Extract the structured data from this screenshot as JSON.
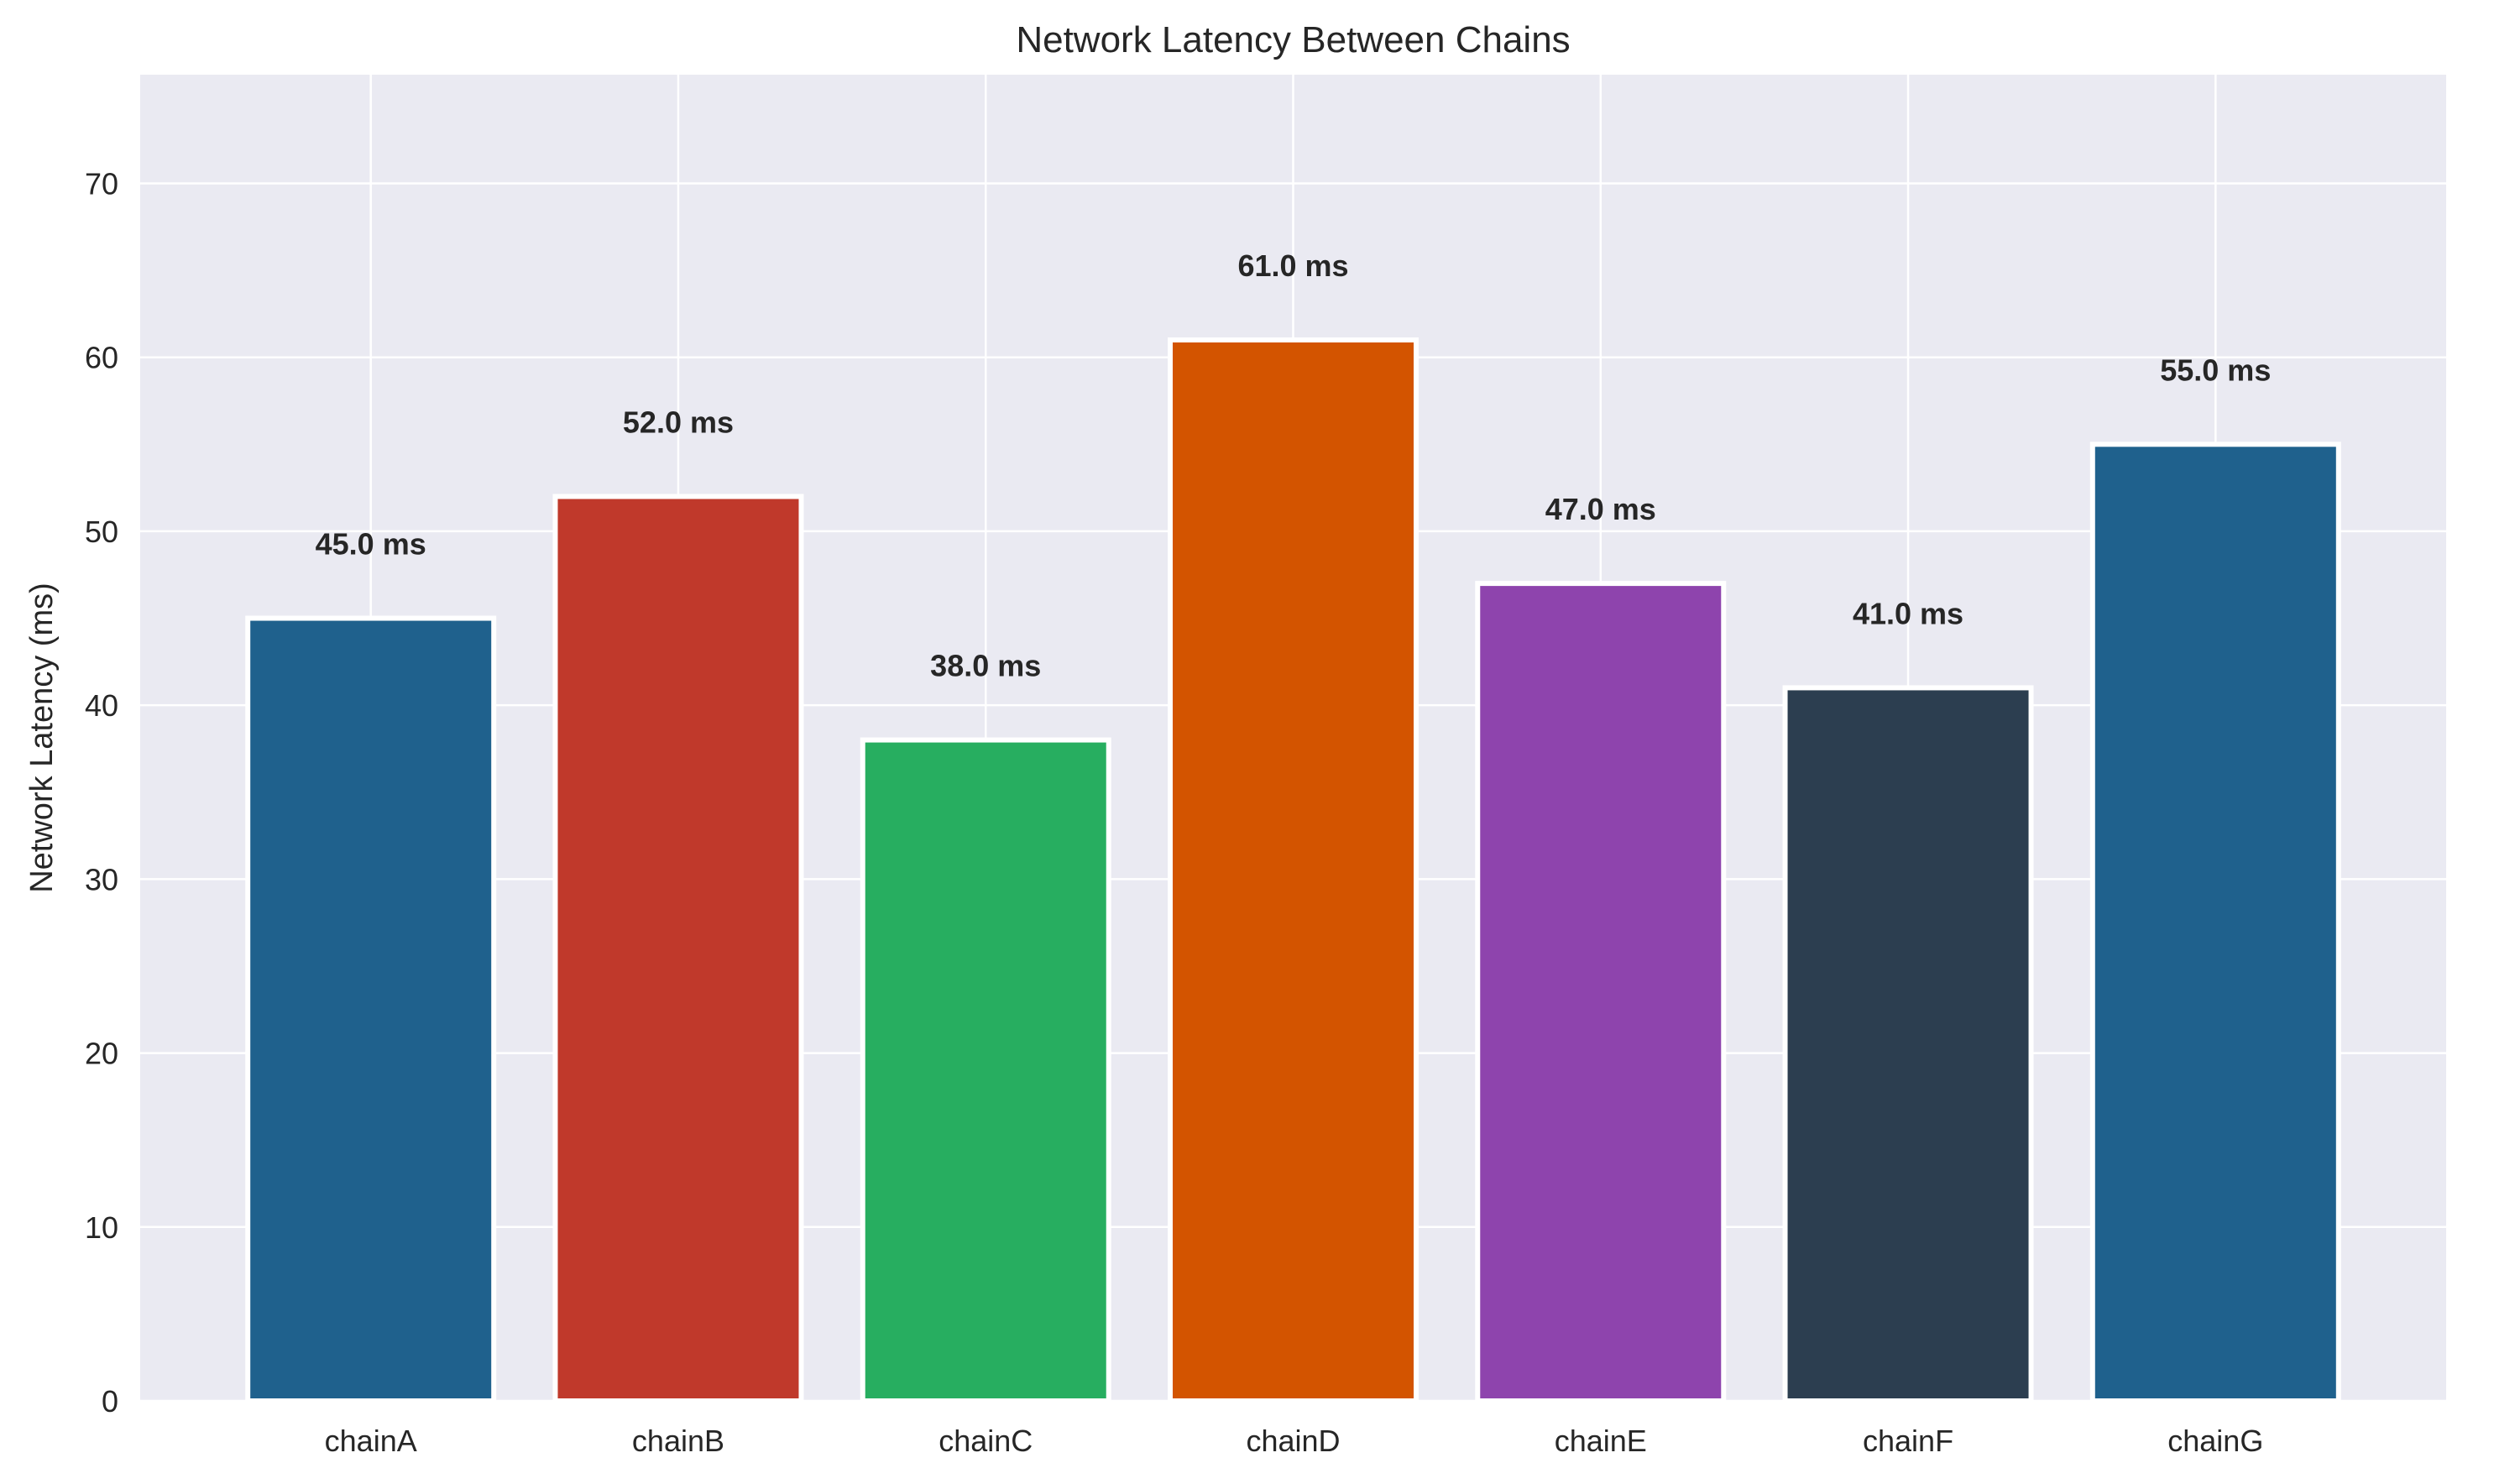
{
  "chart_data": {
    "type": "bar",
    "title": "Network Latency Between Chains",
    "xlabel": "",
    "ylabel": "Network Latency (ms)",
    "categories": [
      "chainA",
      "chainB",
      "chainC",
      "chainD",
      "chainE",
      "chainF",
      "chainG"
    ],
    "values": [
      45.0,
      52.0,
      38.0,
      61.0,
      47.0,
      41.0,
      55.0
    ],
    "value_labels": [
      "45.0 ms",
      "52.0 ms",
      "38.0 ms",
      "61.0 ms",
      "47.0 ms",
      "41.0 ms",
      "55.0 ms"
    ],
    "colors": [
      "#1f618d",
      "#c0392b",
      "#27ae60",
      "#d35400",
      "#8e44ad",
      "#2c3e50",
      "#1f618d"
    ],
    "ylim": [
      0,
      76.25
    ],
    "yticks": [
      0,
      10,
      20,
      30,
      40,
      50,
      60,
      70
    ],
    "ytick_labels": [
      "0",
      "10",
      "20",
      "30",
      "40",
      "50",
      "60",
      "70"
    ],
    "grid": true,
    "legend": "none",
    "background_color": "#eaeaf2",
    "grid_color": "#ffffff",
    "bar_edge_color": "#ffffff"
  }
}
